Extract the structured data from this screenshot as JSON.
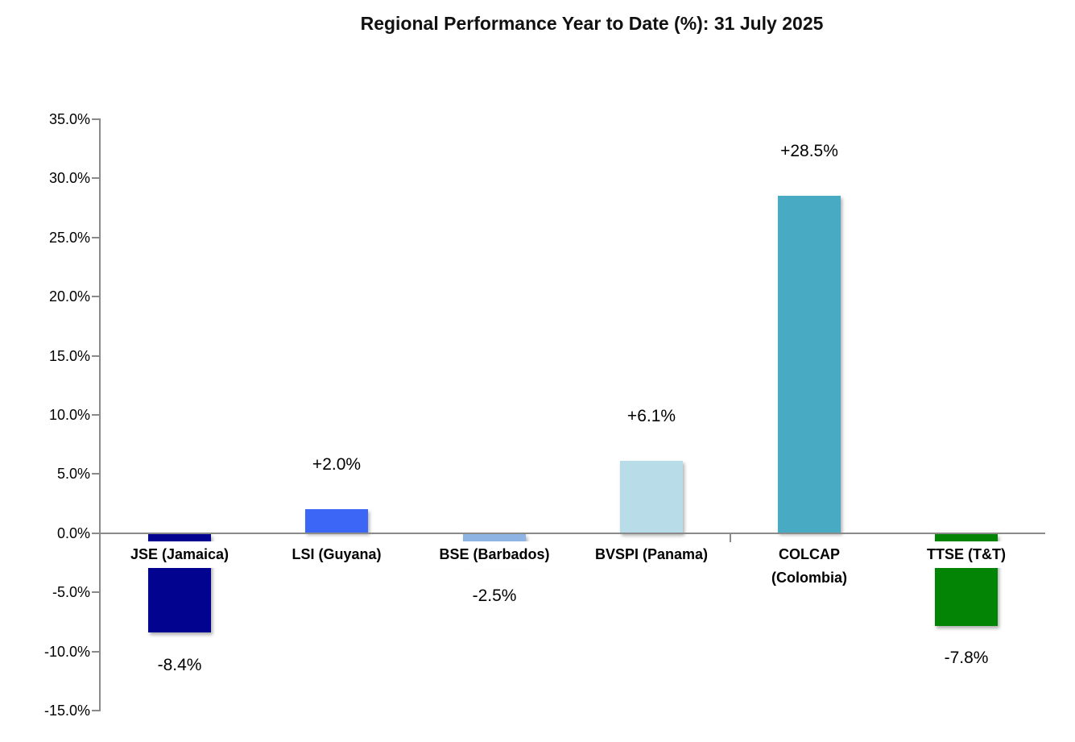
{
  "title": "Regional Performance Year to Date (%): 31 July 2025",
  "chart_data": {
    "type": "bar",
    "title": "Regional Performance Year to Date (%): 31 July 2025",
    "categories": [
      "JSE (Jamaica)",
      "LSI (Guyana)",
      "BSE (Barbados)",
      "BVSPI (Panama)",
      "COLCAP\n(Colombia)",
      "TTSE (T&T)"
    ],
    "values": [
      -8.4,
      2.0,
      -2.5,
      6.1,
      28.5,
      -7.8
    ],
    "data_labels": [
      "-8.4%",
      "+2.0%",
      "-2.5%",
      "+6.1%",
      "+28.5%",
      "-7.8%"
    ],
    "bar_colors": [
      "#02038F",
      "#3B66F6",
      "#8DB4E3",
      "#B9DCE9",
      "#48AAC3",
      "#048404"
    ],
    "xlabel": "",
    "ylabel": "",
    "ylim": [
      -15,
      35
    ],
    "ytick_step": 5,
    "ytick_labels": [
      "35.0%",
      "30.0%",
      "25.0%",
      "20.0%",
      "15.0%",
      "10.0%",
      "5.0%",
      "0.0%",
      "-5.0%",
      "-10.0%",
      "-15.0%"
    ],
    "grid": false,
    "legend": false,
    "axis_color": "#8a8a8a",
    "label_background": "#ffffff"
  }
}
